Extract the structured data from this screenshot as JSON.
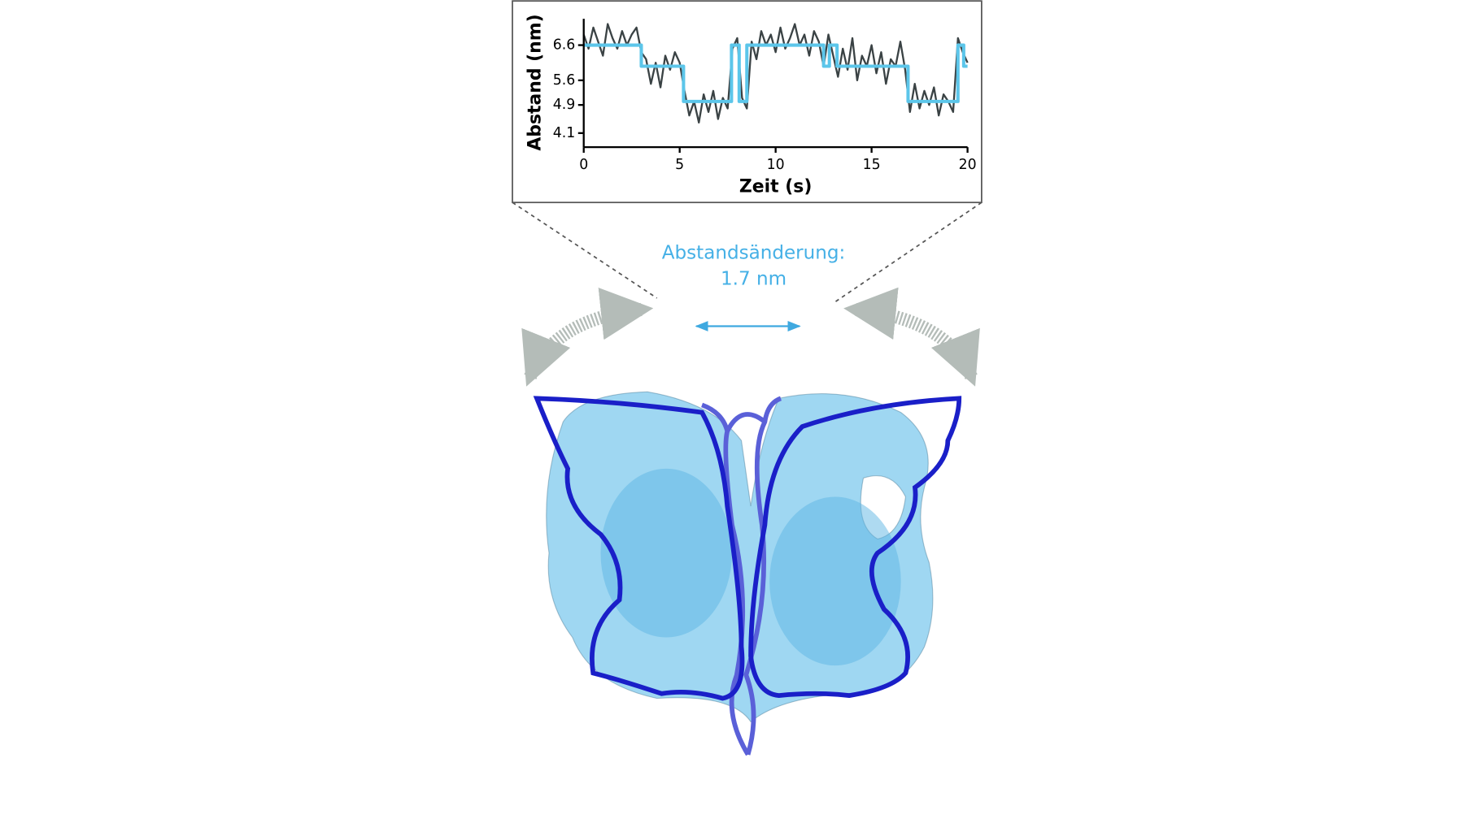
{
  "chart_data": {
    "type": "line",
    "xlabel": "Zeit (s)",
    "ylabel": "Abstand (nm)",
    "xlim": [
      0,
      20
    ],
    "xticks": [
      0,
      5,
      10,
      15,
      20
    ],
    "ylim": [
      3.7,
      7.35
    ],
    "yticks": [
      6.6,
      5.6,
      4.9,
      4.1
    ],
    "series": [
      {
        "color": "#3a4244",
        "x": [
          0,
          0.25,
          0.5,
          0.75,
          1,
          1.25,
          1.5,
          1.75,
          2,
          2.25,
          2.5,
          2.75,
          3,
          3.25,
          3.5,
          3.75,
          4,
          4.25,
          4.5,
          4.75,
          5,
          5.25,
          5.5,
          5.75,
          6,
          6.25,
          6.5,
          6.75,
          7,
          7.25,
          7.5,
          7.75,
          8,
          8.25,
          8.5,
          8.75,
          9,
          9.25,
          9.5,
          9.75,
          10,
          10.25,
          10.5,
          10.75,
          11,
          11.25,
          11.5,
          11.75,
          12,
          12.25,
          12.5,
          12.75,
          13,
          13.25,
          13.5,
          13.75,
          14,
          14.25,
          14.5,
          14.75,
          15,
          15.25,
          15.5,
          15.75,
          16,
          16.25,
          16.5,
          16.75,
          17,
          17.25,
          17.5,
          17.75,
          18,
          18.25,
          18.5,
          18.75,
          19,
          19.25,
          19.5,
          19.75,
          20
        ],
        "values": [
          6.9,
          6.5,
          7.1,
          6.7,
          6.3,
          7.2,
          6.8,
          6.5,
          7.0,
          6.6,
          6.9,
          7.1,
          6.4,
          6.2,
          5.5,
          6.1,
          5.4,
          6.3,
          5.9,
          6.4,
          6.1,
          5.3,
          4.6,
          5.0,
          4.4,
          5.2,
          4.7,
          5.3,
          4.5,
          5.1,
          4.8,
          6.5,
          6.8,
          5.1,
          4.8,
          6.7,
          6.2,
          7.0,
          6.6,
          6.9,
          6.4,
          7.1,
          6.5,
          6.8,
          7.2,
          6.6,
          6.9,
          6.3,
          7.0,
          6.7,
          6.0,
          6.9,
          6.3,
          5.7,
          6.5,
          5.9,
          6.8,
          5.6,
          6.3,
          6.0,
          6.6,
          5.8,
          6.4,
          5.5,
          6.2,
          6.0,
          6.7,
          5.9,
          4.7,
          5.5,
          4.8,
          5.3,
          4.9,
          5.4,
          4.6,
          5.2,
          5.0,
          4.7,
          6.8,
          6.4,
          6.1
        ]
      },
      {
        "color": "#5cc6ea",
        "x": [
          0,
          3,
          3,
          5.2,
          5.2,
          7.7,
          7.7,
          8.1,
          8.1,
          8.5,
          8.5,
          12.5,
          12.5,
          12.8,
          12.8,
          13.2,
          13.2,
          16.9,
          16.9,
          19.5,
          19.5,
          19.8,
          19.8,
          20
        ],
        "values": [
          6.6,
          6.6,
          6.0,
          6.0,
          5.0,
          5.0,
          6.6,
          6.6,
          5.0,
          5.0,
          6.6,
          6.6,
          6.0,
          6.0,
          6.6,
          6.6,
          6.0,
          6.0,
          5.0,
          5.0,
          6.6,
          6.6,
          6.0,
          6.0
        ]
      }
    ],
    "annotations": [
      "Abstandsänderung:",
      "1.7 nm"
    ]
  }
}
